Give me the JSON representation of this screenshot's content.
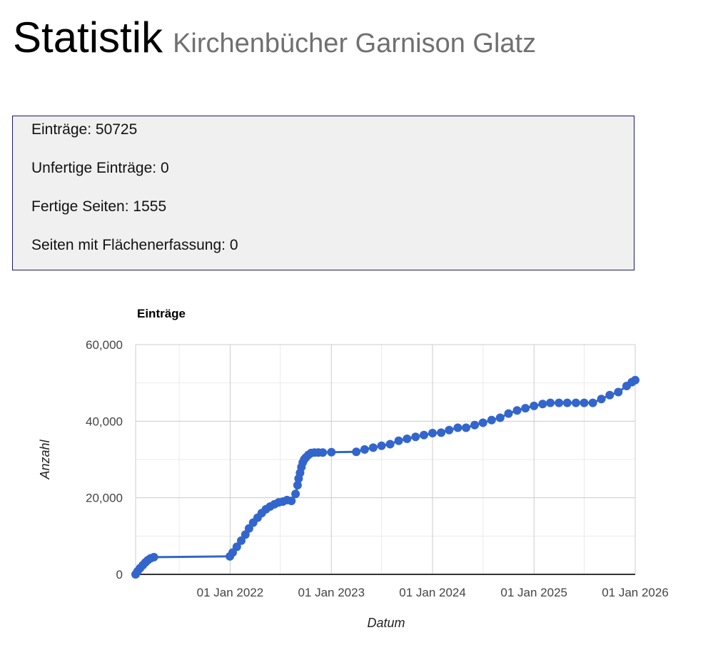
{
  "header": {
    "title": "Statistik",
    "subtitle": "Kirchenbücher Garnison Glatz"
  },
  "stats": [
    {
      "label": "Einträge",
      "value": "50725"
    },
    {
      "label": "Unfertige Einträge",
      "value": "0"
    },
    {
      "label": "Fertige Seiten",
      "value": "1555"
    },
    {
      "label": "Seiten mit Flächenerfassung",
      "value": "0"
    }
  ],
  "colors": {
    "series": "#3366cc",
    "grid_major": "#cccccc",
    "grid_minor": "#ebebeb",
    "stats_background": "#f0f0f0",
    "stats_border": "#1a1a6e"
  },
  "chart_data": {
    "type": "scatter",
    "title": "Einträge",
    "xlabel": "Datum",
    "ylabel": "Anzahl",
    "xlim": [
      "2021-01-25",
      "2026-01-01"
    ],
    "ylim": [
      0,
      60000
    ],
    "yticks": [
      0,
      20000,
      40000,
      60000
    ],
    "ytick_labels": [
      "0",
      "20,000",
      "40,000",
      "60,000"
    ],
    "xticks": [
      "2022-01-01",
      "2023-01-01",
      "2024-01-01",
      "2025-01-01",
      "2026-01-01"
    ],
    "xtick_labels": [
      "01 Jan 2022",
      "01 Jan 2023",
      "01 Jan 2024",
      "01 Jan 2025",
      "01 Jan 2026"
    ],
    "grid": true,
    "legend": "none",
    "series": [
      {
        "x": [
          "2021-01-25",
          "2021-02-01",
          "2021-02-10",
          "2021-02-20",
          "2021-03-01",
          "2021-03-10",
          "2021-03-20",
          "2021-04-01",
          "2021-12-31",
          "2022-01-10",
          "2022-01-25",
          "2022-02-10",
          "2022-02-25",
          "2022-03-10",
          "2022-03-25",
          "2022-04-10",
          "2022-04-25",
          "2022-05-10",
          "2022-05-25",
          "2022-06-10",
          "2022-06-25",
          "2022-07-10",
          "2022-07-25",
          "2022-08-10",
          "2022-08-25",
          "2022-09-01",
          "2022-09-05",
          "2022-09-10",
          "2022-09-15",
          "2022-09-20",
          "2022-09-25",
          "2022-10-01",
          "2022-10-10",
          "2022-10-20",
          "2022-11-01",
          "2022-11-15",
          "2022-12-01",
          "2023-01-01",
          "2023-04-01",
          "2023-05-01",
          "2023-06-01",
          "2023-07-01",
          "2023-08-01",
          "2023-09-01",
          "2023-10-01",
          "2023-11-01",
          "2023-12-01",
          "2024-01-01",
          "2024-02-01",
          "2024-03-01",
          "2024-04-01",
          "2024-05-01",
          "2024-06-01",
          "2024-07-01",
          "2024-08-01",
          "2024-09-01",
          "2024-10-01",
          "2024-11-01",
          "2024-12-01",
          "2025-01-01",
          "2025-02-01",
          "2025-03-01",
          "2025-04-01",
          "2025-05-01",
          "2025-06-01",
          "2025-07-01",
          "2025-08-01",
          "2025-09-01",
          "2025-10-01",
          "2025-11-01",
          "2025-12-01",
          "2025-12-20",
          "2026-01-01"
        ],
        "y": [
          0,
          800,
          1600,
          2400,
          3100,
          3700,
          4200,
          4500,
          4700,
          5700,
          7200,
          8800,
          10400,
          12000,
          13500,
          14800,
          16000,
          17000,
          17700,
          18300,
          18800,
          19000,
          19400,
          19200,
          21000,
          23300,
          25000,
          26500,
          28000,
          29200,
          30000,
          30500,
          31200,
          31700,
          31800,
          31800,
          31800,
          31900,
          32000,
          32600,
          33100,
          33600,
          34000,
          34900,
          35400,
          35900,
          36400,
          36900,
          37000,
          37700,
          38300,
          38300,
          39000,
          39600,
          40300,
          40900,
          42000,
          42800,
          43400,
          44000,
          44500,
          44800,
          44800,
          44800,
          44800,
          44800,
          44800,
          45800,
          46800,
          47600,
          49200,
          50200,
          50725
        ]
      }
    ]
  }
}
